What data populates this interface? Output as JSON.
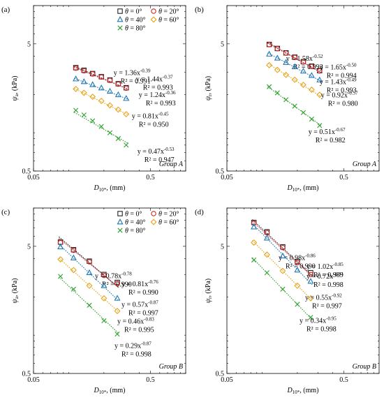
{
  "chart_data": [
    {
      "id": "a",
      "type": "scatter",
      "panel_label": "(a)",
      "xlabel": "D10*, (mm)",
      "ylabel": "ψa, (kPa)",
      "xscale": "log",
      "yscale": "log",
      "xlim": [
        0.05,
        1.0
      ],
      "ylim": [
        0.5,
        10
      ],
      "xticks": [
        "0.05",
        "0.5"
      ],
      "yticks": [
        "0.5",
        "5"
      ],
      "group_label": "Group A",
      "legend": true,
      "x": [
        0.115,
        0.135,
        0.16,
        0.19,
        0.225,
        0.265,
        0.31
      ],
      "series": [
        {
          "name": "θ = 0°",
          "marker": "square",
          "color": "#222222",
          "values": [
            3.25,
            3.1,
            2.92,
            2.76,
            2.6,
            2.43,
            2.26
          ],
          "fit": {
            "a": 1.36,
            "b": -0.39
          },
          "equation": "y = 1.36x",
          "exponent": "-0.39",
          "r2": "R² = 0.991"
        },
        {
          "name": "θ = 20°",
          "marker": "circle",
          "color": "#d62728",
          "values": [
            3.22,
            3.07,
            2.9,
            2.74,
            2.58,
            2.41,
            2.24
          ],
          "fit": {
            "a": 1.44,
            "b": -0.37
          },
          "equation": "y = 1.44x",
          "exponent": "-0.37",
          "r2": "R² = 0.993"
        },
        {
          "name": "θ = 40°",
          "marker": "triangle",
          "color": "#1f77b4",
          "values": [
            2.65,
            2.52,
            2.39,
            2.25,
            2.12,
            1.99,
            1.86
          ],
          "fit": {
            "a": 1.24,
            "b": -0.36
          },
          "equation": "y = 1.24x",
          "exponent": "-0.36",
          "r2": "R² = 0.993"
        },
        {
          "name": "θ = 60°",
          "marker": "diamond",
          "color": "#e8a317",
          "values": [
            2.21,
            2.06,
            1.92,
            1.78,
            1.64,
            1.52,
            1.4
          ],
          "fit": {
            "a": 0.81,
            "b": -0.45
          },
          "equation": "y = 0.81x",
          "exponent": "-0.45",
          "r2": "R² = 0.950"
        },
        {
          "name": "θ = 80°",
          "marker": "cross",
          "color": "#2ca02c",
          "values": [
            1.5,
            1.38,
            1.24,
            1.12,
            1.0,
            0.9,
            0.8
          ],
          "fit": {
            "a": 0.47,
            "b": -0.53
          },
          "equation": "y = 0.47x",
          "exponent": "-0.53",
          "r2": "R² = 0.947"
        }
      ]
    },
    {
      "id": "b",
      "type": "scatter",
      "panel_label": "(b)",
      "xlabel": "D10*, (mm)",
      "ylabel": "ψr, (kPa)",
      "xscale": "log",
      "yscale": "log",
      "xlim": [
        0.05,
        1.0
      ],
      "ylim": [
        0.5,
        10
      ],
      "xticks": [
        "0.05",
        "0.5"
      ],
      "yticks": [
        "0.5",
        "5"
      ],
      "group_label": "Group A",
      "legend": false,
      "x": [
        0.115,
        0.135,
        0.16,
        0.19,
        0.225,
        0.265,
        0.31
      ],
      "series": [
        {
          "name": "θ = 0°",
          "marker": "square",
          "color": "#222222",
          "values": [
            4.95,
            4.6,
            4.25,
            3.93,
            3.62,
            3.34,
            3.08
          ],
          "fit": {
            "a": 1.58,
            "b": -0.52
          },
          "equation": "y = 1.58x",
          "exponent": "-0.52",
          "r2": "R² = 0.993"
        },
        {
          "name": "θ = 20°",
          "marker": "circle",
          "color": "#d62728",
          "values": [
            4.93,
            4.58,
            4.23,
            3.91,
            3.6,
            3.32,
            3.06
          ],
          "fit": {
            "a": 1.65,
            "b": -0.5
          },
          "equation": "y = 1.65x",
          "exponent": "-0.50",
          "r2": "R² = 0.994"
        },
        {
          "name": "θ = 40°",
          "marker": "triangle",
          "color": "#1f77b4",
          "values": [
            4.15,
            3.86,
            3.57,
            3.3,
            3.05,
            2.82,
            2.6
          ],
          "fit": {
            "a": 1.43,
            "b": -0.49
          },
          "equation": "y = 1.43x",
          "exponent": "-0.49",
          "r2": "R² = 0.993"
        },
        {
          "name": "θ = 60°",
          "marker": "diamond",
          "color": "#e8a317",
          "values": [
            3.4,
            3.12,
            2.85,
            2.61,
            2.38,
            2.18,
            1.99
          ],
          "fit": {
            "a": 0.92,
            "b": -0.57
          },
          "equation": "y = 0.92x",
          "exponent": "-0.57",
          "r2": "R² = 0.980"
        },
        {
          "name": "θ = 80°",
          "marker": "cross",
          "color": "#2ca02c",
          "values": [
            2.3,
            2.06,
            1.82,
            1.62,
            1.44,
            1.28,
            1.14
          ],
          "fit": {
            "a": 0.51,
            "b": -0.67
          },
          "equation": "y = 0.51x",
          "exponent": "-0.67",
          "r2": "R² = 0.982"
        }
      ]
    },
    {
      "id": "c",
      "type": "scatter",
      "panel_label": "(c)",
      "xlabel": "D10*, (mm)",
      "ylabel": "ψa, (kPa)",
      "xscale": "log",
      "yscale": "log",
      "xlim": [
        0.05,
        1.0
      ],
      "ylim": [
        0.5,
        10
      ],
      "xticks": [
        "0.05",
        "0.5"
      ],
      "yticks": [
        "0.5",
        "5"
      ],
      "group_label": "Group B",
      "legend": true,
      "x": [
        0.085,
        0.11,
        0.15,
        0.2,
        0.26
      ],
      "series": [
        {
          "name": "θ = 0°",
          "marker": "square",
          "color": "#222222",
          "values": [
            5.4,
            4.7,
            3.82,
            3.0,
            2.6
          ],
          "fit": {
            "a": 0.78,
            "b": -0.78
          },
          "equation": "y = 0.78x",
          "exponent": "-0.78",
          "r2": "R² = 0.990"
        },
        {
          "name": "θ = 20°",
          "marker": "circle",
          "color": "#d62728",
          "values": [
            5.35,
            4.65,
            3.78,
            2.95,
            2.55
          ],
          "fit": {
            "a": 0.81,
            "b": -0.76
          },
          "equation": "y = 0.81x",
          "exponent": "-0.76",
          "r2": "R² = 0.990"
        },
        {
          "name": "θ = 40°",
          "marker": "triangle",
          "color": "#1f77b4",
          "values": [
            4.95,
            4.05,
            3.1,
            2.45,
            1.95
          ],
          "fit": {
            "a": 0.57,
            "b": -0.87
          },
          "equation": "y = 0.57x",
          "exponent": "-0.87",
          "r2": "R² = 0.997"
        },
        {
          "name": "θ = 60°",
          "marker": "diamond",
          "color": "#e8a317",
          "values": [
            3.95,
            3.25,
            2.45,
            1.95,
            1.55
          ],
          "fit": {
            "a": 0.46,
            "b": -0.83
          },
          "equation": "y = 0.46x",
          "exponent": "-0.83",
          "r2": "R² = 0.995"
        },
        {
          "name": "θ = 80°",
          "marker": "cross",
          "color": "#2ca02c",
          "values": [
            2.9,
            2.3,
            1.72,
            1.3,
            1.02
          ],
          "fit": {
            "a": 0.29,
            "b": -0.87
          },
          "equation": "y = 0.29x",
          "exponent": "-0.87",
          "r2": "R² = 0.998"
        }
      ]
    },
    {
      "id": "d",
      "type": "scatter",
      "panel_label": "(d)",
      "xlabel": "D10*, (mm)",
      "ylabel": "ψr, (kPa)",
      "xscale": "log",
      "yscale": "log",
      "xlim": [
        0.05,
        1.0
      ],
      "ylim": [
        0.5,
        10
      ],
      "xticks": [
        "0.05",
        "0.5"
      ],
      "yticks": [
        "0.5",
        "5"
      ],
      "group_label": "Group B",
      "legend": false,
      "x": [
        0.085,
        0.11,
        0.15,
        0.2,
        0.26
      ],
      "series": [
        {
          "name": "θ = 0°",
          "marker": "square",
          "color": "#222222",
          "values": [
            7.7,
            6.5,
            4.95,
            3.8,
            3.1
          ],
          "fit": {
            "a": 0.98,
            "b": -0.86
          },
          "equation": "y = 0.98x",
          "exponent": "-0.86",
          "r2": "R² = 0.990"
        },
        {
          "name": "θ = 20°",
          "marker": "circle",
          "color": "#d62728",
          "values": [
            7.6,
            6.4,
            4.88,
            3.72,
            3.0
          ],
          "fit": {
            "a": 1.02,
            "b": -0.85
          },
          "equation": "y = 1.02x",
          "exponent": "-0.85",
          "r2": "R² = 0.989"
        },
        {
          "name": "θ = 40°",
          "marker": "triangle",
          "color": "#1f77b4",
          "values": [
            7.1,
            5.8,
            4.2,
            3.25,
            2.65
          ],
          "fit": {
            "a": 0.72,
            "b": -0.94
          },
          "equation": "y = 0.72x",
          "exponent": "-0.94",
          "r2": "R² = 0.998"
        },
        {
          "name": "θ = 60°",
          "marker": "diamond",
          "color": "#e8a317",
          "values": [
            5.35,
            4.3,
            3.2,
            2.45,
            1.95
          ],
          "fit": {
            "a": 0.55,
            "b": -0.92
          },
          "equation": "y = 0.55x",
          "exponent": "-0.92",
          "r2": "R² = 0.997"
        },
        {
          "name": "θ = 80°",
          "marker": "cross",
          "color": "#2ca02c",
          "values": [
            3.9,
            3.1,
            2.3,
            1.75,
            1.38
          ],
          "fit": {
            "a": 0.34,
            "b": -0.95
          },
          "equation": "y = 0.34x",
          "exponent": "-0.95",
          "r2": "R² = 0.998"
        }
      ]
    }
  ]
}
